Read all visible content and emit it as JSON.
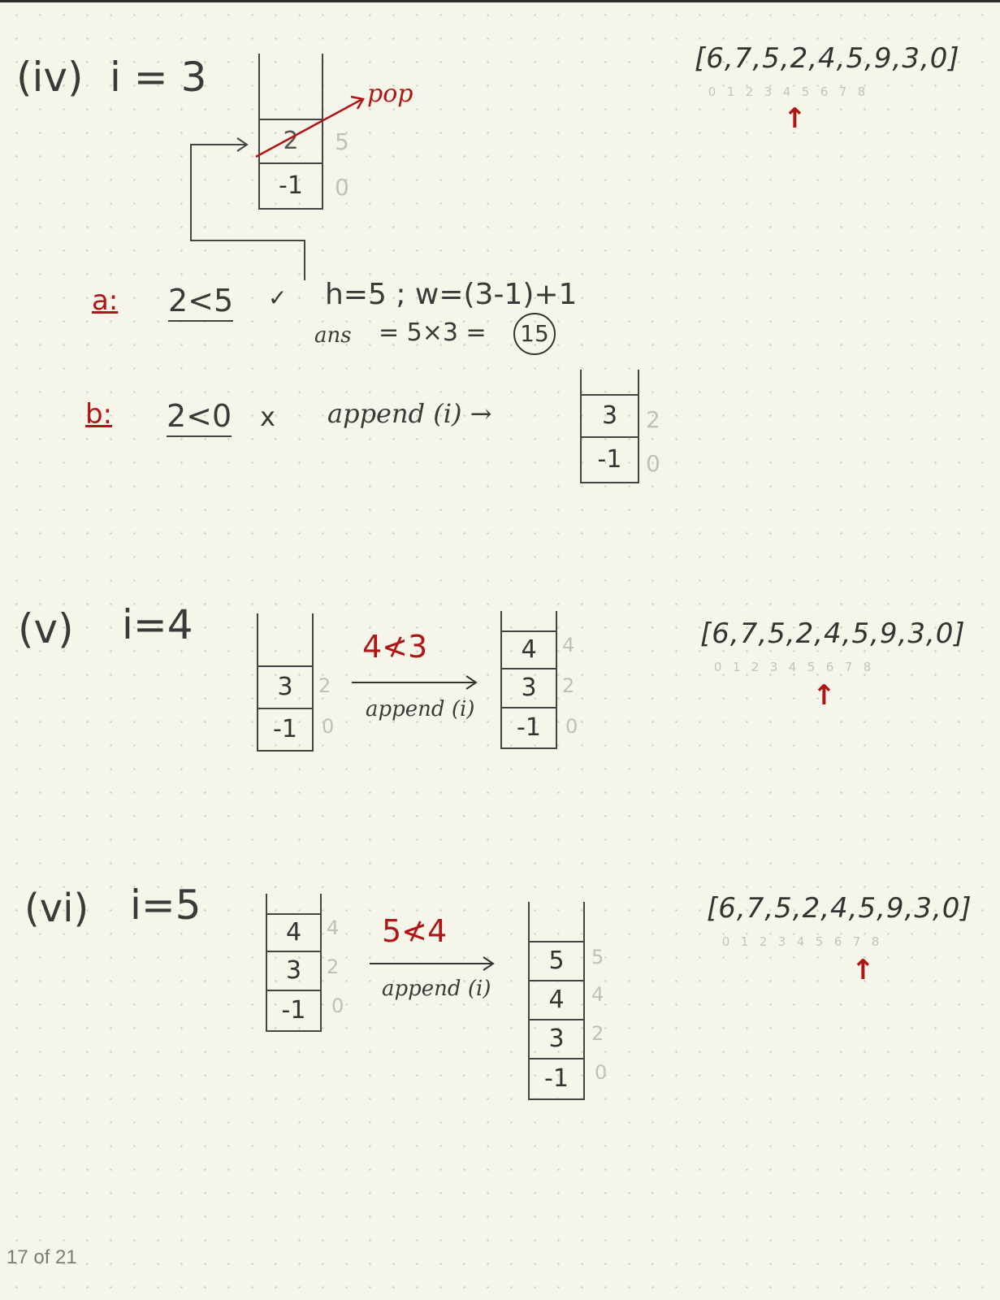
{
  "page_indicator": "17 of 21",
  "array": {
    "text": "[6,7,5,2,4,5,9,3,0]",
    "indices": [
      "0",
      "1",
      "2",
      "3",
      "4",
      "5",
      "6",
      "7",
      "8"
    ]
  },
  "step4": {
    "label": "(iv)",
    "i": "i = 3",
    "pop": "pop",
    "stack": [
      {
        "value": "2",
        "index": "5"
      },
      {
        "value": "-1",
        "index": "0"
      }
    ],
    "a_label": "a:",
    "a_cond": "2<5",
    "a_check": "✓",
    "a_calc": "h=5 ; w=(3-1)+1",
    "a_ans_label": "ans",
    "a_ans_calc": "=  5×3 =",
    "a_ans": "15",
    "b_label": "b:",
    "b_cond": "2<0",
    "b_x": "x",
    "b_action": "append (i) →",
    "stack_after": [
      {
        "value": "3",
        "index": "2"
      },
      {
        "value": "-1",
        "index": "0"
      }
    ],
    "pointer_index": 3
  },
  "step5": {
    "label": "(v)",
    "i": "i=4",
    "op": "4≮3",
    "action": "append (i)",
    "stack_before": [
      {
        "value": "3",
        "index": "2"
      },
      {
        "value": "-1",
        "index": "0"
      }
    ],
    "stack_after": [
      {
        "value": "4",
        "index": "4"
      },
      {
        "value": "3",
        "index": "2"
      },
      {
        "value": "-1",
        "index": "0"
      }
    ],
    "pointer_index": 4
  },
  "step6": {
    "label": "(vi)",
    "i": "i=5",
    "op": "5≮4",
    "action": "append (i)",
    "stack_before": [
      {
        "value": "4",
        "index": "4"
      },
      {
        "value": "3",
        "index": "2"
      },
      {
        "value": "-1",
        "index": "0"
      }
    ],
    "stack_after": [
      {
        "value": "5",
        "index": "5"
      },
      {
        "value": "4",
        "index": "4"
      },
      {
        "value": "3",
        "index": "2"
      },
      {
        "value": "-1",
        "index": "0"
      }
    ],
    "pointer_index": 5
  }
}
